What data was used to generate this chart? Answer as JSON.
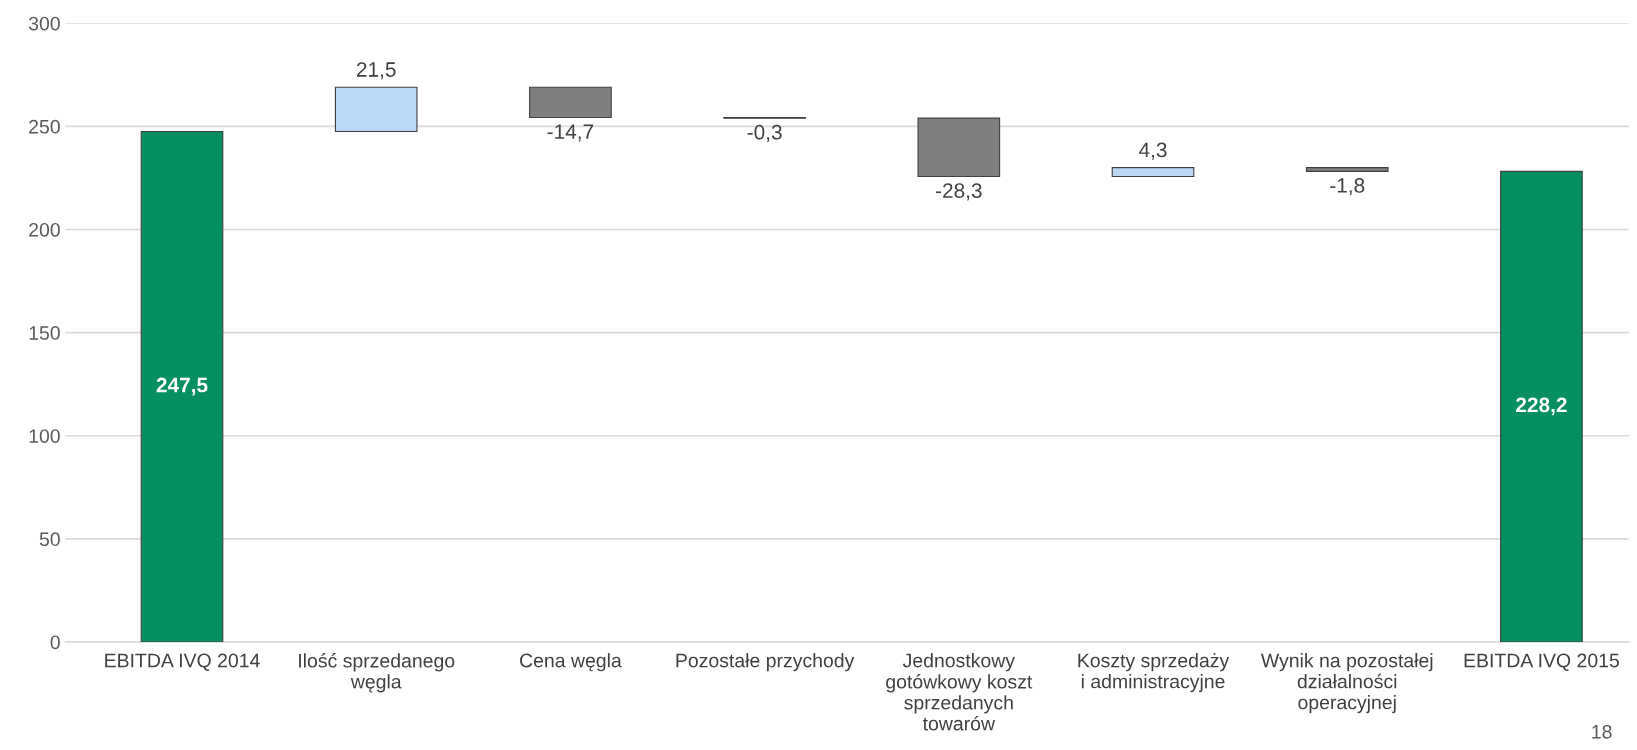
{
  "chart_data": {
    "type": "bar",
    "categories": [
      "EBITDA IVQ 2014",
      "Ilość sprzedanego\nwęgla",
      "Cena węgla",
      "Pozostałe przychody",
      "Jednostkowy\ngotówkowy koszt\nsprzedanych\ntowarów",
      "Koszty sprzedaży\ni administracyjne",
      "Wynik na pozostałej\ndziałalności\noperacyjnej",
      "EBITDA IVQ 2015"
    ],
    "values": [
      247.5,
      21.5,
      -14.7,
      -0.3,
      -28.3,
      4.3,
      -1.8,
      228.2
    ],
    "base": [
      0,
      247.5,
      269.0,
      254.3,
      254.0,
      225.7,
      230.0,
      0
    ],
    "colors": [
      "#07905f",
      "#bdd7f7",
      "#7f7f7f",
      "#7f7f7f",
      "#7f7f7f",
      "#bdd7f7",
      "#7f7f7f",
      "#07905f"
    ],
    "value_labels": [
      "247,5",
      "21,5",
      "-14,7",
      "-0,3",
      "-28,3",
      "4,3",
      "-1,8",
      "228,2"
    ],
    "ylim": [
      0,
      300
    ],
    "yticks": [
      0,
      50,
      100,
      150,
      200,
      250,
      300
    ],
    "grid": "y",
    "annotations": [
      "18"
    ]
  }
}
